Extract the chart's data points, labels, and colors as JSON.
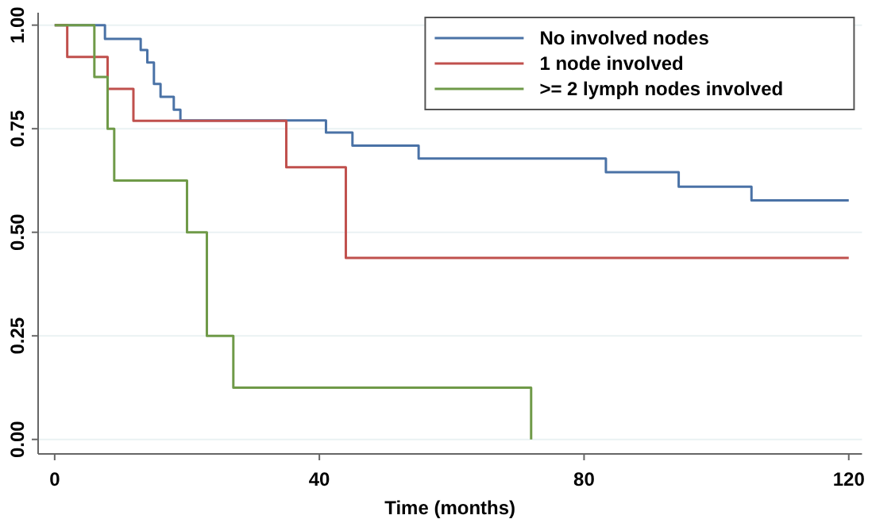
{
  "chart_data": {
    "type": "step",
    "xlabel": "Time (months)",
    "xlim": [
      -2.5,
      122
    ],
    "ylim": [
      -0.035,
      1.03
    ],
    "xticks": [
      0,
      40,
      80,
      120
    ],
    "yticks": [
      {
        "value": 0,
        "label": "0.00"
      },
      {
        "value": 0.25,
        "label": "0.25"
      },
      {
        "value": 0.5,
        "label": "0.50"
      },
      {
        "value": 0.75,
        "label": "0.75"
      },
      {
        "value": 1,
        "label": "1.00"
      }
    ],
    "grid": "y",
    "legend": "top right",
    "line_style": "solid",
    "marker": "none",
    "series": [
      {
        "name": "No involved nodes",
        "color": "#4a72a6",
        "x": [
          0,
          7.6,
          13,
          14,
          15,
          16,
          18,
          19,
          41,
          45,
          55,
          83.3,
          94.3,
          105.3,
          120
        ],
        "values": [
          1,
          0.967,
          0.94,
          0.91,
          0.858,
          0.827,
          0.796,
          0.77,
          0.741,
          0.709,
          0.678,
          0.645,
          0.61,
          0.577,
          0.577
        ]
      },
      {
        "name": "1 node involved",
        "color": "#c0504d",
        "x": [
          0,
          1.9,
          8,
          11.9,
          35,
          44,
          120
        ],
        "values": [
          1,
          0.923,
          0.846,
          0.769,
          0.657,
          0.438,
          0.438
        ]
      },
      {
        "name": ">= 2 lymph nodes involved",
        "color": "#6f9a48",
        "x": [
          0,
          6,
          8,
          9,
          20,
          23,
          27,
          72
        ],
        "values": [
          1,
          0.875,
          0.75,
          0.625,
          0.5,
          0.25,
          0.125,
          0
        ]
      }
    ]
  }
}
